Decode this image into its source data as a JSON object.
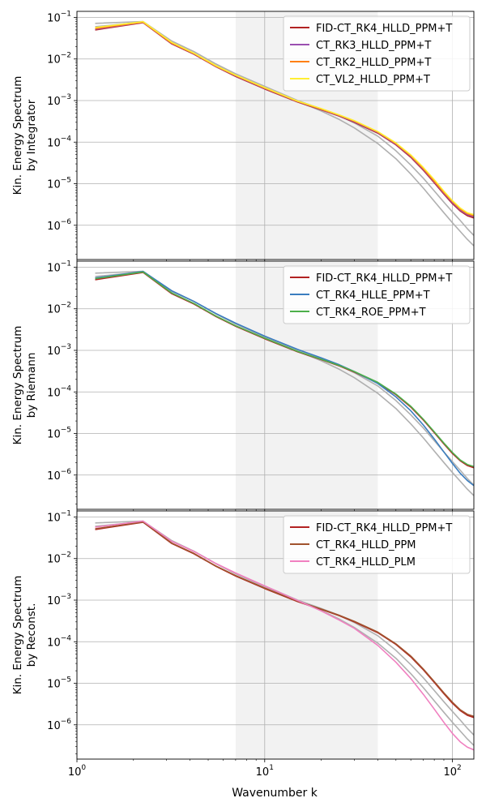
{
  "figure": {
    "xlabel": "Wavenumber k",
    "x_tick_labels": [
      "10^0",
      "10^1",
      "10^2"
    ]
  },
  "chart_data": [
    {
      "type": "line",
      "title": "",
      "ylabel_lines": [
        "Kin. Energy Spectrum",
        "by Integrator"
      ],
      "xlabel": "",
      "xscale": "log",
      "yscale": "log",
      "xlim": [
        1,
        130
      ],
      "ylim": [
        1.5e-07,
        0.14
      ],
      "y_tick_labels": [
        "10^-6",
        "10^-5",
        "10^-4",
        "10^-3",
        "10^-2",
        "10^-1"
      ],
      "grid": true,
      "legend_position": "top-right",
      "shaded_band": [
        7,
        40
      ],
      "x": [
        1.25,
        2.25,
        3.2,
        4.2,
        5.5,
        7,
        10,
        15,
        20,
        25,
        30,
        40,
        50,
        60,
        70,
        80,
        90,
        100,
        110,
        120,
        130
      ],
      "background_series": [
        {
          "values": [
            0.072,
            0.08,
            0.027,
            0.015,
            0.0075,
            0.0043,
            0.0021,
            0.00095,
            0.00056,
            0.00035,
            0.00022,
            9.3e-05,
            4e-05,
            1.7e-05,
            7.8e-06,
            3.8e-06,
            2e-06,
            1.15e-06,
            7.1e-07,
            4.6e-07,
            3.2e-07
          ],
          "color": "#b0b0b0"
        },
        {
          "values": [
            0.06,
            0.077,
            0.026,
            0.015,
            0.0076,
            0.0044,
            0.0022,
            0.001,
            0.00063,
            0.00043,
            0.00029,
            0.00014,
            6.2e-05,
            2.8e-05,
            1.35e-05,
            6.7e-06,
            3.6e-06,
            2.1e-06,
            1.3e-06,
            8.3e-07,
            5.7e-07
          ],
          "color": "#b0b0b0"
        }
      ],
      "series": [
        {
          "name": "FID-CT_RK4_HLLD_PPM+T",
          "color": "#b22222",
          "values": [
            0.05,
            0.075,
            0.023,
            0.013,
            0.0065,
            0.0038,
            0.0019,
            0.00092,
            0.0006,
            0.00042,
            0.0003,
            0.000165,
            8.6e-05,
            4.3e-05,
            2.1e-05,
            1.05e-05,
            5.6e-06,
            3.3e-06,
            2.2e-06,
            1.7e-06,
            1.5e-06
          ]
        },
        {
          "name": "CT_RK3_HLLD_PPM+T",
          "color": "#9b4fb0",
          "values": [
            0.052,
            0.076,
            0.0235,
            0.0133,
            0.0066,
            0.0039,
            0.00195,
            0.00094,
            0.00061,
            0.00043,
            0.00031,
            0.00017,
            8.9e-05,
            4.5e-05,
            2.2e-05,
            1.1e-05,
            5.9e-06,
            3.5e-06,
            2.3e-06,
            1.8e-06,
            1.6e-06
          ]
        },
        {
          "name": "CT_RK2_HLLD_PPM+T",
          "color": "#ff7f0e",
          "values": [
            0.054,
            0.077,
            0.024,
            0.0135,
            0.0067,
            0.004,
            0.002,
            0.00095,
            0.00062,
            0.00044,
            0.00032,
            0.000175,
            9.2e-05,
            4.7e-05,
            2.3e-05,
            1.15e-05,
            6.2e-06,
            3.7e-06,
            2.45e-06,
            1.9e-06,
            1.7e-06
          ]
        },
        {
          "name": "CT_VL2_HLLD_PPM+T",
          "color": "#ffee33",
          "values": [
            0.057,
            0.079,
            0.025,
            0.0138,
            0.0069,
            0.0041,
            0.00205,
            0.00097,
            0.00064,
            0.00045,
            0.00033,
            0.00018,
            9.6e-05,
            4.9e-05,
            2.45e-05,
            1.25e-05,
            6.6e-06,
            3.9e-06,
            2.6e-06,
            2e-06,
            1.8e-06
          ]
        }
      ]
    },
    {
      "type": "line",
      "title": "",
      "ylabel_lines": [
        "Kin. Energy Spectrum",
        "by Riemann"
      ],
      "xlabel": "",
      "xscale": "log",
      "yscale": "log",
      "xlim": [
        1,
        130
      ],
      "ylim": [
        1.5e-07,
        0.14
      ],
      "y_tick_labels": [
        "10^-6",
        "10^-5",
        "10^-4",
        "10^-3",
        "10^-2",
        "10^-1"
      ],
      "grid": true,
      "legend_position": "top-right",
      "shaded_band": [
        7,
        40
      ],
      "x": [
        1.25,
        2.25,
        3.2,
        4.2,
        5.5,
        7,
        10,
        15,
        20,
        25,
        30,
        40,
        50,
        60,
        70,
        80,
        90,
        100,
        110,
        120,
        130
      ],
      "background_series": [
        {
          "values": [
            0.072,
            0.08,
            0.027,
            0.015,
            0.0075,
            0.0043,
            0.0021,
            0.00095,
            0.00056,
            0.00035,
            0.00022,
            9.3e-05,
            4e-05,
            1.7e-05,
            7.8e-06,
            3.8e-06,
            2e-06,
            1.15e-06,
            7.1e-07,
            4.6e-07,
            3.2e-07
          ],
          "color": "#b0b0b0"
        },
        {
          "values": [
            0.06,
            0.077,
            0.026,
            0.015,
            0.0076,
            0.0044,
            0.0022,
            0.001,
            0.00063,
            0.00043,
            0.00029,
            0.00014,
            6.2e-05,
            2.8e-05,
            1.35e-05,
            6.7e-06,
            3.6e-06,
            2.1e-06,
            1.3e-06,
            8.3e-07,
            5.7e-07
          ],
          "color": "#b0b0b0"
        }
      ],
      "series": [
        {
          "name": "FID-CT_RK4_HLLD_PPM+T",
          "color": "#b22222",
          "values": [
            0.05,
            0.075,
            0.023,
            0.013,
            0.0065,
            0.0038,
            0.0019,
            0.00092,
            0.0006,
            0.00042,
            0.0003,
            0.000165,
            8.6e-05,
            4.3e-05,
            2.1e-05,
            1.05e-05,
            5.6e-06,
            3.3e-06,
            2.2e-06,
            1.7e-06,
            1.5e-06
          ]
        },
        {
          "name": "CT_RK4_HLLE_PPM+T",
          "color": "#3a7dbf",
          "values": [
            0.055,
            0.079,
            0.027,
            0.015,
            0.0077,
            0.0045,
            0.0022,
            0.00105,
            0.00066,
            0.00045,
            0.00031,
            0.00016,
            7.6e-05,
            3.5e-05,
            1.6e-05,
            7.4e-06,
            3.6e-06,
            1.9e-06,
            1.1e-06,
            7.4e-07,
            5.6e-07
          ]
        },
        {
          "name": "CT_RK4_ROE_PPM+T",
          "color": "#4daf4a",
          "values": [
            0.053,
            0.077,
            0.024,
            0.0134,
            0.0067,
            0.0039,
            0.00196,
            0.00094,
            0.00061,
            0.00043,
            0.00031,
            0.00017,
            8.9e-05,
            4.5e-05,
            2.2e-05,
            1.1e-05,
            5.9e-06,
            3.5e-06,
            2.3e-06,
            1.8e-06,
            1.6e-06
          ]
        }
      ]
    },
    {
      "type": "line",
      "title": "",
      "ylabel_lines": [
        "Kin. Energy Spectrum",
        "by Reconst."
      ],
      "xlabel": "Wavenumber k",
      "xscale": "log",
      "yscale": "log",
      "xlim": [
        1,
        130
      ],
      "ylim": [
        1.5e-07,
        0.14
      ],
      "y_tick_labels": [
        "10^-6",
        "10^-5",
        "10^-4",
        "10^-3",
        "10^-2",
        "10^-1"
      ],
      "grid": true,
      "legend_position": "top-right",
      "shaded_band": [
        7,
        40
      ],
      "x": [
        1.25,
        2.25,
        3.2,
        4.2,
        5.5,
        7,
        10,
        15,
        20,
        25,
        30,
        40,
        50,
        60,
        70,
        80,
        90,
        100,
        110,
        120,
        130
      ],
      "background_series": [
        {
          "values": [
            0.072,
            0.08,
            0.027,
            0.015,
            0.0075,
            0.0043,
            0.0021,
            0.00095,
            0.00056,
            0.00035,
            0.00022,
            9.3e-05,
            4e-05,
            1.7e-05,
            7.8e-06,
            3.8e-06,
            2e-06,
            1.15e-06,
            7.1e-07,
            4.6e-07,
            3.2e-07
          ],
          "color": "#b0b0b0"
        },
        {
          "values": [
            0.06,
            0.077,
            0.026,
            0.015,
            0.0076,
            0.0044,
            0.0022,
            0.001,
            0.00063,
            0.00043,
            0.00029,
            0.00014,
            6.2e-05,
            2.8e-05,
            1.35e-05,
            6.7e-06,
            3.6e-06,
            2.1e-06,
            1.3e-06,
            8.3e-07,
            5.7e-07
          ],
          "color": "#b0b0b0"
        }
      ],
      "series": [
        {
          "name": "FID-CT_RK4_HLLD_PPM+T",
          "color": "#b22222",
          "values": [
            0.05,
            0.075,
            0.023,
            0.013,
            0.0065,
            0.0038,
            0.0019,
            0.00092,
            0.0006,
            0.00042,
            0.0003,
            0.000165,
            8.6e-05,
            4.3e-05,
            2.1e-05,
            1.05e-05,
            5.6e-06,
            3.3e-06,
            2.2e-06,
            1.7e-06,
            1.5e-06
          ]
        },
        {
          "name": "CT_RK4_HLLD_PPM",
          "color": "#a0522d",
          "values": [
            0.052,
            0.076,
            0.0235,
            0.0133,
            0.0066,
            0.0039,
            0.00195,
            0.00094,
            0.00061,
            0.00043,
            0.00031,
            0.00017,
            8.9e-05,
            4.5e-05,
            2.2e-05,
            1.1e-05,
            5.9e-06,
            3.5e-06,
            2.3e-06,
            1.8e-06,
            1.6e-06
          ]
        },
        {
          "name": "CT_RK4_HLLD_PLM",
          "color": "#f080c0",
          "values": [
            0.057,
            0.08,
            0.026,
            0.0148,
            0.0076,
            0.0045,
            0.0022,
            0.00098,
            0.00055,
            0.00033,
            0.00021,
            8.2e-05,
            3.2e-05,
            1.3e-05,
            5.4e-06,
            2.4e-06,
            1.15e-06,
            6.2e-07,
            3.9e-07,
            2.9e-07,
            2.5e-07
          ]
        }
      ]
    }
  ]
}
